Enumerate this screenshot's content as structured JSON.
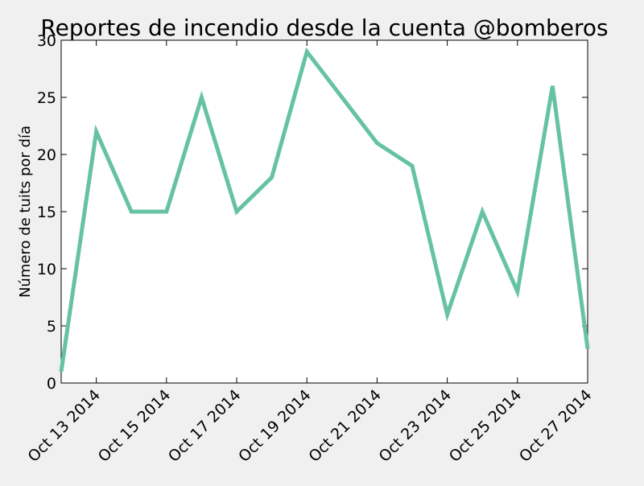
{
  "chart_data": {
    "type": "line",
    "title": "Reportes de incendio desde la cuenta @bomberos",
    "xlabel": "",
    "ylabel": "Número de tuits por día",
    "x": [
      "2014-10-12",
      "2014-10-13",
      "2014-10-14",
      "2014-10-15",
      "2014-10-16",
      "2014-10-17",
      "2014-10-18",
      "2014-10-19",
      "2014-10-20",
      "2014-10-21",
      "2014-10-22",
      "2014-10-23",
      "2014-10-24",
      "2014-10-25",
      "2014-10-26",
      "2014-10-27"
    ],
    "series": [
      {
        "color": "#66c2a5",
        "values": [
          1,
          22,
          15,
          15,
          25,
          15,
          18,
          29,
          25,
          21,
          19,
          6,
          15,
          8,
          26,
          3
        ]
      }
    ],
    "xlim": [
      "2014-10-12",
      "2014-10-27"
    ],
    "ylim": [
      0,
      30
    ],
    "yticks": [
      0,
      5,
      10,
      15,
      20,
      25,
      30
    ],
    "xticks": [
      {
        "date": "2014-10-13",
        "label": "Oct 13 2014"
      },
      {
        "date": "2014-10-15",
        "label": "Oct 15 2014"
      },
      {
        "date": "2014-10-17",
        "label": "Oct 17 2014"
      },
      {
        "date": "2014-10-19",
        "label": "Oct 19 2014"
      },
      {
        "date": "2014-10-21",
        "label": "Oct 21 2014"
      },
      {
        "date": "2014-10-23",
        "label": "Oct 23 2014"
      },
      {
        "date": "2014-10-25",
        "label": "Oct 25 2014"
      },
      {
        "date": "2014-10-27",
        "label": "Oct 27 2014"
      }
    ],
    "grid": false,
    "legend": "none"
  }
}
